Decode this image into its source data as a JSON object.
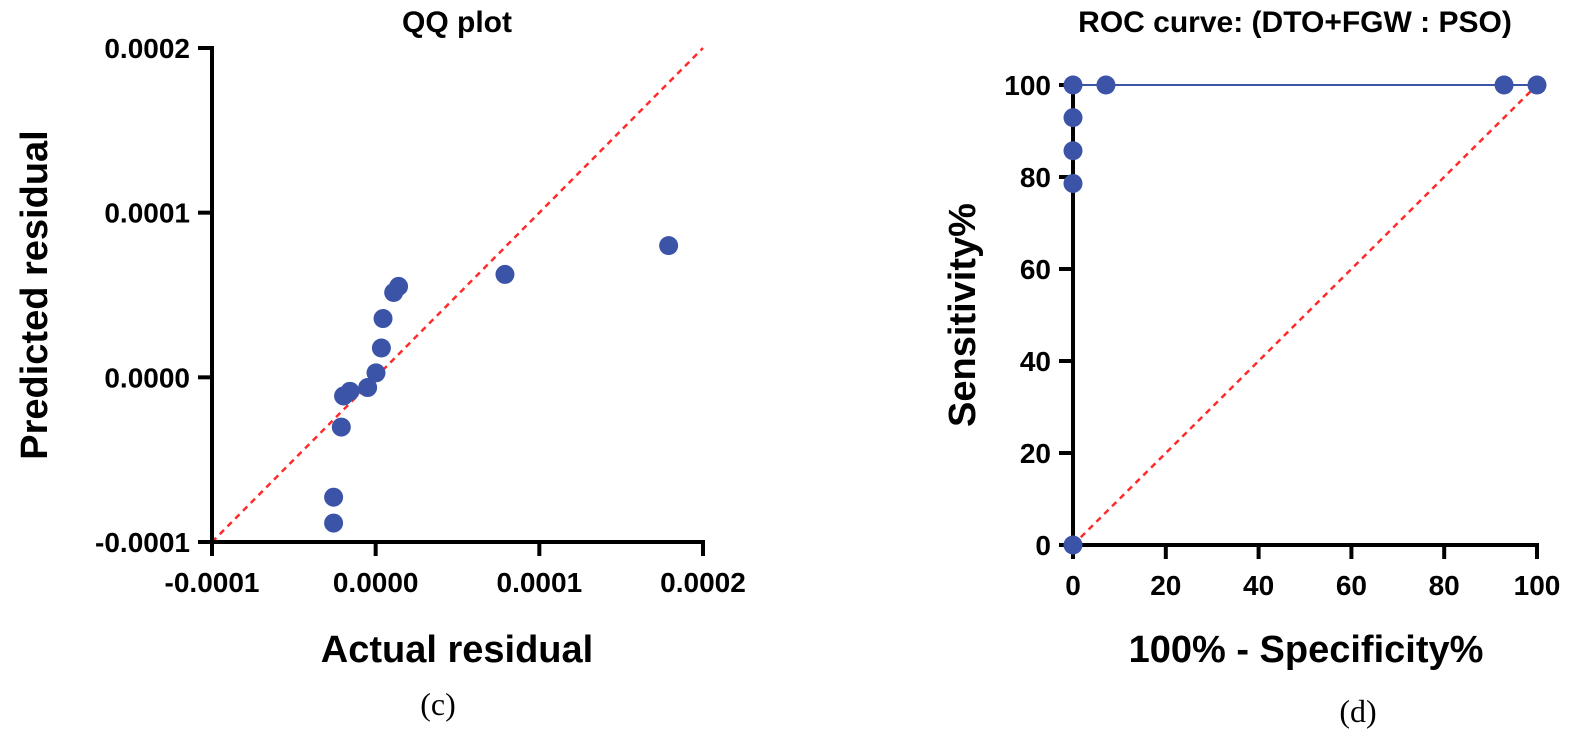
{
  "chart_data": [
    {
      "type": "scatter",
      "title": "QQ plot",
      "xlabel": "Actual residual",
      "ylabel": "Predicted residual",
      "xlim": [
        -0.0001,
        0.0002
      ],
      "ylim": [
        -0.0001,
        0.0002
      ],
      "xticks": [
        -0.0001,
        0.0,
        0.0001,
        0.0002
      ],
      "xtick_labels": [
        "-0.0001",
        "0.0000",
        "0.0001",
        "0.0002"
      ],
      "yticks": [
        -0.0001,
        0.0,
        0.0001,
        0.0002
      ],
      "ytick_labels": [
        "-0.0001",
        "0.0000",
        "0.0001",
        "0.0002"
      ],
      "reference_line": "y = x",
      "marker_color": "#3b54a8",
      "reference_color": "#ff2a2a",
      "caption": "(c)",
      "points": [
        {
          "x": -2.57e-05,
          "y": -8.85e-05
        },
        {
          "x": -2.57e-05,
          "y": -7.28e-05
        },
        {
          "x": -2.1e-05,
          "y": -3.02e-05
        },
        {
          "x": -1.96e-05,
          "y": -1.13e-05
        },
        {
          "x": -1.57e-05,
          "y": -8.5e-06
        },
        {
          "x": -4.9e-06,
          "y": -6.2e-06
        },
        {
          "x": 2e-07,
          "y": 2.7e-06
        },
        {
          "x": 3.5e-06,
          "y": 1.78e-05
        },
        {
          "x": 4.5e-06,
          "y": 3.57e-05
        },
        {
          "x": 1.1e-05,
          "y": 5.15e-05
        },
        {
          "x": 1.4e-05,
          "y": 5.52e-05
        },
        {
          "x": 7.9e-05,
          "y": 6.25e-05
        },
        {
          "x": 0.000179,
          "y": 8e-05
        }
      ]
    },
    {
      "type": "line",
      "title": "ROC curve: (DTO+FGW : PSO)",
      "xlabel": "100% - Specificity%",
      "ylabel": "Sensitivity%",
      "xlim": [
        0,
        100
      ],
      "ylim": [
        0,
        100
      ],
      "xticks": [
        0,
        20,
        40,
        60,
        80,
        100
      ],
      "xtick_labels": [
        "0",
        "20",
        "40",
        "60",
        "80",
        "100"
      ],
      "yticks": [
        0,
        20,
        40,
        60,
        80,
        100
      ],
      "ytick_labels": [
        "0",
        "20",
        "40",
        "60",
        "80",
        "100"
      ],
      "reference_line": "y = x",
      "marker_color": "#3b54a8",
      "reference_color": "#ff2a2a",
      "caption": "(d)",
      "points": [
        {
          "x": 0,
          "y": 0
        },
        {
          "x": 0,
          "y": 78.6
        },
        {
          "x": 0,
          "y": 85.7
        },
        {
          "x": 0,
          "y": 92.9
        },
        {
          "x": 0,
          "y": 100
        },
        {
          "x": 7.1,
          "y": 100
        },
        {
          "x": 92.9,
          "y": 100
        },
        {
          "x": 100,
          "y": 100
        }
      ]
    }
  ]
}
